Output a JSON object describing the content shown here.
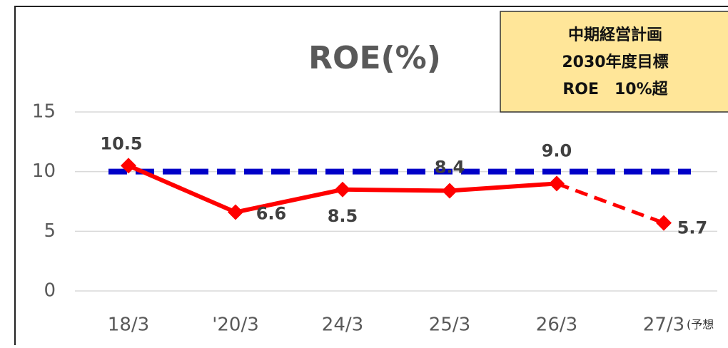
{
  "chart_data": {
    "type": "line",
    "title": "ROE(%)",
    "categories": [
      "18/3",
      "'20/3",
      "24/3",
      "25/3",
      "26/3",
      "27/3"
    ],
    "category_note": "(予想",
    "series": [
      {
        "color": "#ff0000",
        "values": [
          10.5,
          6.6,
          8.5,
          8.4,
          9.0,
          5.7
        ],
        "value_labels": [
          "10.5",
          "6.6",
          "8.5",
          "8.4",
          "9.0",
          "5.7"
        ],
        "dashed_segments": [
          4
        ]
      }
    ],
    "reference_line": {
      "value": 10,
      "color": "#0000c8"
    },
    "ylim": [
      0,
      15
    ],
    "yticks": [
      0,
      5,
      10,
      15
    ],
    "grid": true,
    "annotation": [
      "中期経営計画",
      "2030年度目標",
      "ROE　10%超"
    ]
  }
}
